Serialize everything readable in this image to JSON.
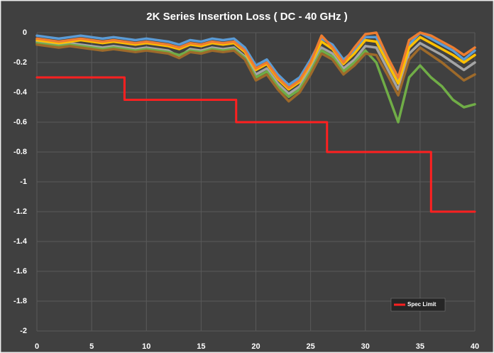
{
  "chart_data": {
    "type": "line",
    "title": "2K Series Insertion Loss ( DC - 40 GHz )",
    "x": [
      0,
      1,
      2,
      3,
      4,
      5,
      6,
      7,
      8,
      9,
      10,
      11,
      12,
      13,
      14,
      15,
      16,
      17,
      18,
      19,
      20,
      21,
      22,
      23,
      24,
      25,
      26,
      27,
      28,
      29,
      30,
      31,
      32,
      33,
      34,
      35,
      36,
      37,
      38,
      39,
      40
    ],
    "xlim": [
      0,
      40
    ],
    "xticks": [
      0,
      5,
      10,
      15,
      20,
      25,
      30,
      35,
      40
    ],
    "ylim": [
      -2,
      0
    ],
    "yticks": [
      0,
      -0.2,
      -0.4,
      -0.6,
      -0.8,
      -1,
      -1.2,
      -1.4,
      -1.6,
      -1.8,
      -2
    ],
    "grid": true,
    "legend": "lower right",
    "series": [
      {
        "color": "#5b9bd5",
        "values": [
          -0.02,
          -0.03,
          -0.04,
          -0.03,
          -0.02,
          -0.03,
          -0.04,
          -0.03,
          -0.04,
          -0.05,
          -0.04,
          -0.05,
          -0.06,
          -0.08,
          -0.05,
          -0.06,
          -0.04,
          -0.05,
          -0.04,
          -0.1,
          -0.22,
          -0.18,
          -0.28,
          -0.35,
          -0.3,
          -0.18,
          -0.04,
          -0.08,
          -0.18,
          -0.12,
          -0.03,
          -0.03,
          -0.18,
          -0.32,
          -0.08,
          0,
          -0.04,
          -0.08,
          -0.12,
          -0.18,
          -0.12
        ]
      },
      {
        "color": "#a5a5a5",
        "values": [
          -0.06,
          -0.07,
          -0.08,
          -0.07,
          -0.08,
          -0.09,
          -0.1,
          -0.09,
          -0.1,
          -0.11,
          -0.1,
          -0.11,
          -0.12,
          -0.16,
          -0.11,
          -0.12,
          -0.1,
          -0.11,
          -0.1,
          -0.16,
          -0.28,
          -0.24,
          -0.34,
          -0.41,
          -0.36,
          -0.24,
          -0.1,
          -0.14,
          -0.24,
          -0.18,
          -0.09,
          -0.1,
          -0.24,
          -0.38,
          -0.14,
          -0.07,
          -0.11,
          -0.15,
          -0.2,
          -0.25,
          -0.2
        ]
      },
      {
        "color": "#70ad47",
        "values": [
          -0.07,
          -0.08,
          -0.09,
          -0.08,
          -0.09,
          -0.1,
          -0.11,
          -0.1,
          -0.11,
          -0.12,
          -0.11,
          -0.12,
          -0.13,
          -0.15,
          -0.12,
          -0.13,
          -0.11,
          -0.12,
          -0.11,
          -0.17,
          -0.3,
          -0.26,
          -0.36,
          -0.43,
          -0.38,
          -0.26,
          -0.12,
          -0.16,
          -0.26,
          -0.2,
          -0.12,
          -0.2,
          -0.4,
          -0.6,
          -0.3,
          -0.22,
          -0.3,
          -0.36,
          -0.45,
          -0.5,
          -0.48
        ]
      },
      {
        "color": "#9e6a2a",
        "values": [
          -0.08,
          -0.09,
          -0.1,
          -0.09,
          -0.1,
          -0.11,
          -0.12,
          -0.11,
          -0.12,
          -0.13,
          -0.12,
          -0.13,
          -0.14,
          -0.17,
          -0.13,
          -0.14,
          -0.12,
          -0.13,
          -0.12,
          -0.18,
          -0.32,
          -0.28,
          -0.38,
          -0.46,
          -0.4,
          -0.28,
          -0.14,
          -0.18,
          -0.28,
          -0.22,
          -0.14,
          -0.15,
          -0.28,
          -0.42,
          -0.18,
          -0.1,
          -0.15,
          -0.2,
          -0.26,
          -0.32,
          -0.28
        ]
      },
      {
        "color": "#ffc000",
        "values": [
          -0.05,
          -0.06,
          -0.07,
          -0.06,
          -0.05,
          -0.06,
          -0.07,
          -0.06,
          -0.07,
          -0.08,
          -0.07,
          -0.08,
          -0.09,
          -0.11,
          -0.08,
          -0.09,
          -0.07,
          -0.08,
          -0.07,
          -0.13,
          -0.25,
          -0.21,
          -0.31,
          -0.38,
          -0.33,
          -0.21,
          -0.06,
          -0.11,
          -0.21,
          -0.14,
          -0.05,
          -0.06,
          -0.2,
          -0.34,
          -0.1,
          -0.03,
          -0.07,
          -0.11,
          -0.15,
          -0.2,
          -0.15
        ]
      },
      {
        "color": "#ed7d31",
        "values": [
          -0.04,
          -0.05,
          -0.06,
          -0.05,
          -0.04,
          -0.05,
          -0.06,
          -0.05,
          -0.06,
          -0.07,
          -0.06,
          -0.07,
          -0.08,
          -0.1,
          -0.07,
          -0.08,
          -0.06,
          -0.07,
          -0.06,
          -0.12,
          -0.24,
          -0.2,
          -0.3,
          -0.37,
          -0.32,
          -0.2,
          -0.02,
          -0.1,
          -0.2,
          -0.1,
          -0.01,
          0,
          -0.16,
          -0.3,
          -0.05,
          0,
          -0.02,
          -0.06,
          -0.1,
          -0.15,
          -0.1
        ]
      },
      {
        "name": "Spec Limit",
        "color": "#ff2020",
        "x": [
          0,
          8,
          8,
          18.2,
          18.2,
          26.5,
          26.5,
          36,
          36,
          40
        ],
        "values": [
          -0.3,
          -0.3,
          -0.45,
          -0.45,
          -0.6,
          -0.6,
          -0.8,
          -0.8,
          -1.2,
          -1.2
        ]
      }
    ]
  }
}
